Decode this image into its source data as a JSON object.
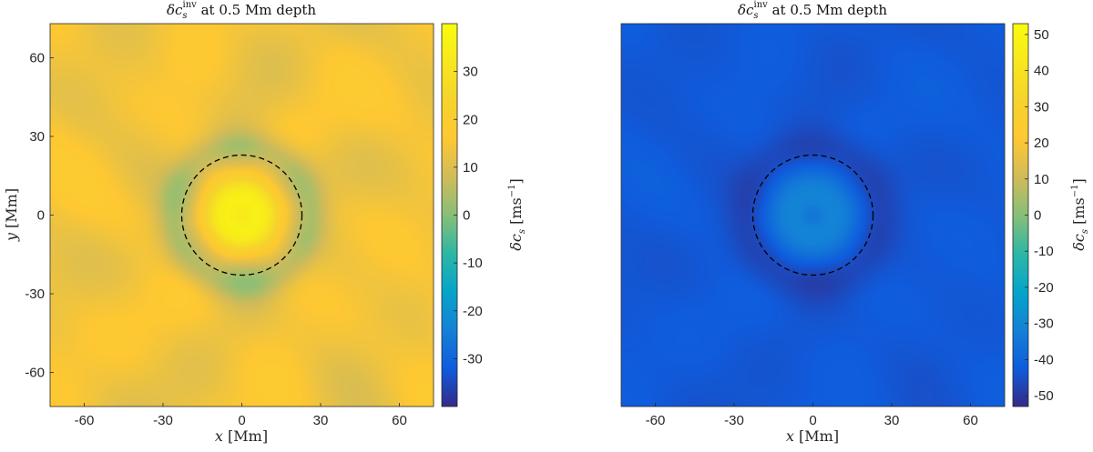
{
  "chart_data": [
    {
      "type": "heatmap",
      "title": "δc_s^inv at 0.5 Mm depth",
      "title_main": "δc",
      "title_sub": "s",
      "title_sup": "inv",
      "title_rest": " at 0.5 Mm depth",
      "xlabel_var": "x",
      "xlabel_unit": " [Mm]",
      "ylabel_var": "y",
      "ylabel_unit": " [Mm]",
      "xlim": [
        -73,
        73
      ],
      "ylim": [
        -73,
        73
      ],
      "xticks": [
        -60,
        -30,
        0,
        30,
        60
      ],
      "yticks": [
        60,
        30,
        0,
        -30,
        -60
      ],
      "colorbar": {
        "label": "δc_s [m s^-1]",
        "label_main": "δc",
        "label_sub": "s",
        "label_unit": " [ms",
        "label_sup": "−1",
        "label_close": "]",
        "range": [
          -40,
          40
        ],
        "ticks": [
          30,
          20,
          10,
          0,
          -10,
          -20,
          -30
        ]
      },
      "field": {
        "background": 14,
        "core_peak": 37,
        "core_center_dip": 33,
        "core_radius": 14,
        "moat_value": 5,
        "moat_radius": 26,
        "moat_width": 7
      },
      "annotations": [
        {
          "type": "dashed-circle",
          "center": [
            0,
            0
          ],
          "radius": 23
        }
      ]
    },
    {
      "type": "heatmap",
      "title": "δc_s^inv at 0.5 Mm depth",
      "title_main": "δc",
      "title_sub": "s",
      "title_sup": "inv",
      "title_rest": " at 0.5 Mm depth",
      "xlabel_var": "x",
      "xlabel_unit": " [Mm]",
      "ylabel_var": "",
      "ylabel_unit": "",
      "xlim": [
        -73,
        73
      ],
      "ylim": [
        -73,
        73
      ],
      "xticks": [
        -60,
        -30,
        0,
        30,
        60
      ],
      "yticks": [],
      "colorbar": {
        "label": "δc_s [m s^-1]",
        "label_main": "δc",
        "label_sub": "s",
        "label_unit": " [ms",
        "label_sup": "−1",
        "label_close": "]",
        "range": [
          -53,
          53
        ],
        "ticks": [
          50,
          40,
          30,
          20,
          10,
          0,
          -10,
          -20,
          -30,
          -40,
          -50
        ]
      },
      "field": {
        "background": -43,
        "core_peak": -30,
        "core_center_dip": -35,
        "core_radius": 17,
        "moat_value": -47,
        "moat_radius": 26,
        "moat_width": 8
      },
      "annotations": [
        {
          "type": "dashed-circle",
          "center": [
            0,
            0
          ],
          "radius": 23
        }
      ]
    }
  ]
}
